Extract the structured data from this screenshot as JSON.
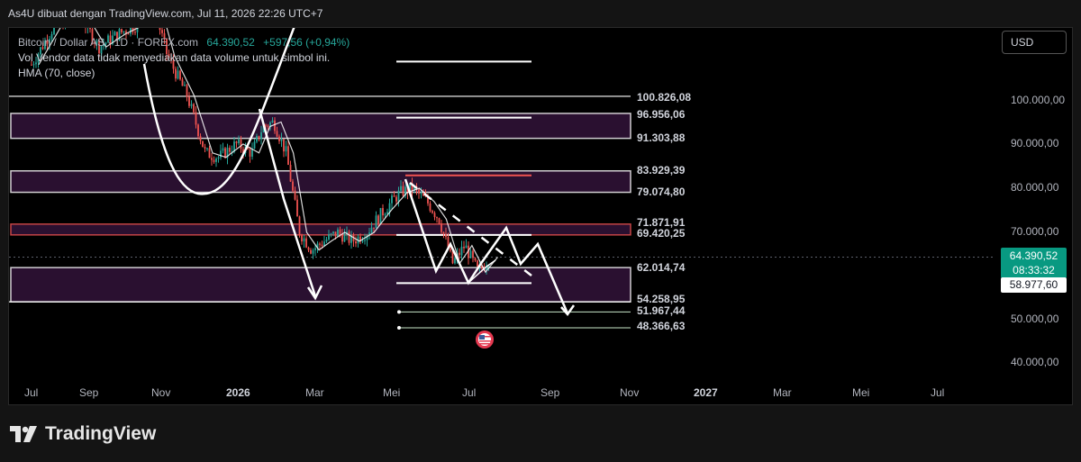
{
  "caption": "As4U dibuat dengan TradingView.com, Jul 11, 2026 22:26 UTC+7",
  "legend": {
    "symbol": "Bitcoin / Dollar AS · 1D · FOREX.com",
    "price": "64.390,52",
    "change": "+597,56 (+0,94%)",
    "volume_note": "Vol Vendor data tidak menyediakan data volume untuk simbol ini.",
    "indicator": "HMA (70, close)"
  },
  "currency_button": "USD",
  "price_levels": [
    "100.826,08",
    "96.956,06",
    "91.303,88",
    "83.929,39",
    "79.074,80",
    "71.871,91",
    "69.420,25",
    "62.014,74",
    "54.258,95",
    "51.967,44",
    "48.366,63"
  ],
  "y_axis": [
    "100.000,00",
    "90.000,00",
    "80.000,00",
    "70.000,00",
    "50.000,00",
    "40.000,00"
  ],
  "x_axis": [
    "Jul",
    "Sep",
    "Nov",
    "2026",
    "Mar",
    "Mei",
    "Jul",
    "Sep",
    "Nov",
    "2027",
    "Mar",
    "Mei",
    "Jul"
  ],
  "last_price": {
    "price": "64.390,52",
    "countdown": "08:33:32"
  },
  "crosshair_price": "58.977,60",
  "brand": "TradingView",
  "colors": {
    "up": "#26a69a",
    "down": "#ef5350",
    "zone": "#2a1030",
    "background": "#000000"
  },
  "chart_data": {
    "type": "line",
    "x": [
      "2025-07-01",
      "2025-07-20",
      "2025-08-10",
      "2025-08-25",
      "2025-09-10",
      "2025-09-25",
      "2025-10-06",
      "2025-10-20",
      "2025-11-05",
      "2025-11-20",
      "2025-12-01",
      "2025-12-15",
      "2025-12-28",
      "2026-01-06",
      "2026-01-15",
      "2026-01-25",
      "2026-02-05",
      "2026-02-15",
      "2026-02-25",
      "2026-03-08",
      "2026-03-20",
      "2026-04-01",
      "2026-04-15",
      "2026-04-28",
      "2026-05-08",
      "2026-05-20",
      "2026-05-30",
      "2026-06-10",
      "2026-06-20",
      "2026-07-01",
      "2026-07-11"
    ],
    "series": [
      {
        "values": [
          108000,
          117000,
          119000,
          112000,
          115000,
          117000,
          124000,
          110000,
          101000,
          88000,
          87000,
          90000,
          88000,
          94000,
          95000,
          88000,
          70000,
          66000,
          68000,
          70000,
          68000,
          70000,
          75000,
          79000,
          80000,
          77000,
          73000,
          63000,
          67000,
          61000,
          64390
        ]
      }
    ],
    "ylim": [
      36000,
      117000
    ]
  }
}
